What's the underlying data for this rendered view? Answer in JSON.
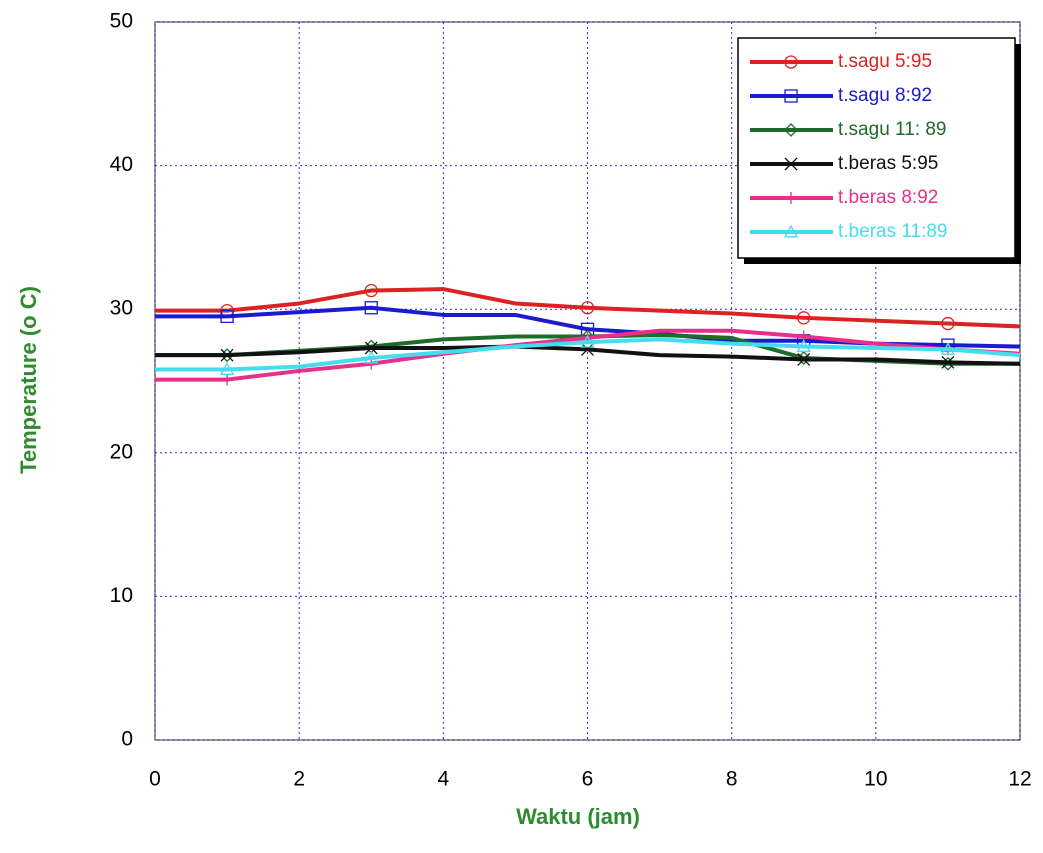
{
  "chart_data": {
    "type": "line",
    "xlabel": "Waktu (jam)",
    "ylabel": "Temperature (o C)",
    "x": [
      0,
      1,
      2,
      3,
      4,
      5,
      6,
      7,
      8,
      9,
      10,
      11,
      12
    ],
    "xlim": [
      0,
      12
    ],
    "xticks": [
      0,
      2,
      4,
      6,
      8,
      10,
      12
    ],
    "ylim": [
      0,
      50
    ],
    "yticks": [
      0,
      10,
      20,
      30,
      40,
      50
    ],
    "grid": true,
    "legend": "upper right",
    "marker_x": [
      1,
      3,
      6,
      9,
      11
    ],
    "series": [
      {
        "name": "t.sagu 5:95",
        "color": "#dd2222",
        "marker": "circle",
        "values": [
          29.9,
          29.9,
          30.4,
          31.3,
          31.4,
          30.4,
          30.1,
          29.9,
          29.7,
          29.4,
          29.2,
          29.0,
          28.8
        ]
      },
      {
        "name": "t.sagu 8:92",
        "color": "#1a1ad0",
        "marker": "square",
        "values": [
          29.5,
          29.5,
          29.8,
          30.1,
          29.6,
          29.6,
          28.6,
          28.3,
          27.8,
          27.8,
          27.6,
          27.5,
          27.4
        ]
      },
      {
        "name": "t.sagu 11: 89",
        "color": "#1e6b2a",
        "marker": "diamond",
        "values": [
          26.8,
          26.8,
          27.1,
          27.4,
          27.9,
          28.1,
          28.1,
          28.2,
          28.0,
          26.6,
          26.4,
          26.2,
          26.2
        ]
      },
      {
        "name": "t.beras 5:95",
        "color": "#111111",
        "marker": "x",
        "values": [
          26.8,
          26.8,
          27.0,
          27.3,
          27.3,
          27.4,
          27.2,
          26.8,
          26.7,
          26.5,
          26.5,
          26.3,
          26.2
        ]
      },
      {
        "name": "t.beras 8:92",
        "color": "#e8308a",
        "marker": "plus",
        "values": [
          25.1,
          25.1,
          25.7,
          26.2,
          26.9,
          27.5,
          28.0,
          28.5,
          28.5,
          28.1,
          27.6,
          27.2,
          26.9
        ]
      },
      {
        "name": "t.beras 11:89",
        "color": "#44ddee",
        "marker": "triangle",
        "values": [
          25.8,
          25.8,
          26.0,
          26.6,
          27.0,
          27.4,
          27.7,
          27.9,
          27.6,
          27.4,
          27.3,
          27.2,
          26.8
        ]
      }
    ]
  }
}
